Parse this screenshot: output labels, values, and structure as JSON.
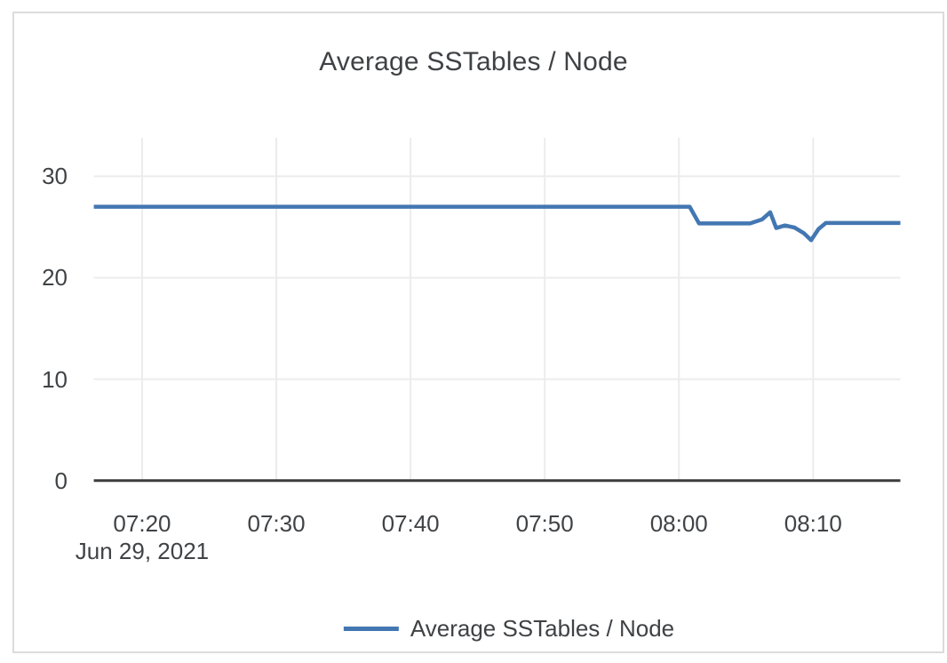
{
  "chart": {
    "title": "Average SSTables / Node",
    "date_label": "Jun 29, 2021",
    "legend": {
      "label": "Average SSTables / Node"
    },
    "colors": {
      "series": "#4377b2",
      "grid": "#ececec",
      "axis": "#3b3c3e",
      "text": "#404346",
      "card_border": "#dcdcdc",
      "background": "#ffffff"
    }
  },
  "chart_data": {
    "type": "line",
    "title": "Average SSTables / Node",
    "subtitle": "",
    "xlabel": "Jun 29, 2021",
    "ylabel": "",
    "grid": true,
    "legend_position": "bottom",
    "x_ticks": [
      {
        "label": "07:20",
        "min_after_0700": 20
      },
      {
        "label": "07:30",
        "min_after_0700": 30
      },
      {
        "label": "07:40",
        "min_after_0700": 40
      },
      {
        "label": "07:50",
        "min_after_0700": 50
      },
      {
        "label": "08:00",
        "min_after_0700": 60
      },
      {
        "label": "08:10",
        "min_after_0700": 70
      }
    ],
    "y_ticks": [
      0,
      10,
      20,
      30
    ],
    "ylim": [
      0,
      33.8
    ],
    "xlim_minutes_after_0700": [
      16.4,
      76.5
    ],
    "series": [
      {
        "name": "Average SSTables / Node",
        "color": "#4377b2",
        "points_min_after_0700": [
          [
            16.4,
            27.0
          ],
          [
            60.8,
            27.0
          ],
          [
            61.5,
            25.35
          ],
          [
            65.3,
            25.35
          ],
          [
            66.2,
            25.75
          ],
          [
            66.8,
            26.45
          ],
          [
            67.25,
            24.9
          ],
          [
            67.9,
            25.15
          ],
          [
            68.6,
            24.95
          ],
          [
            69.3,
            24.4
          ],
          [
            69.85,
            23.7
          ],
          [
            70.4,
            24.8
          ],
          [
            70.95,
            25.4
          ],
          [
            76.5,
            25.4
          ]
        ]
      }
    ]
  }
}
